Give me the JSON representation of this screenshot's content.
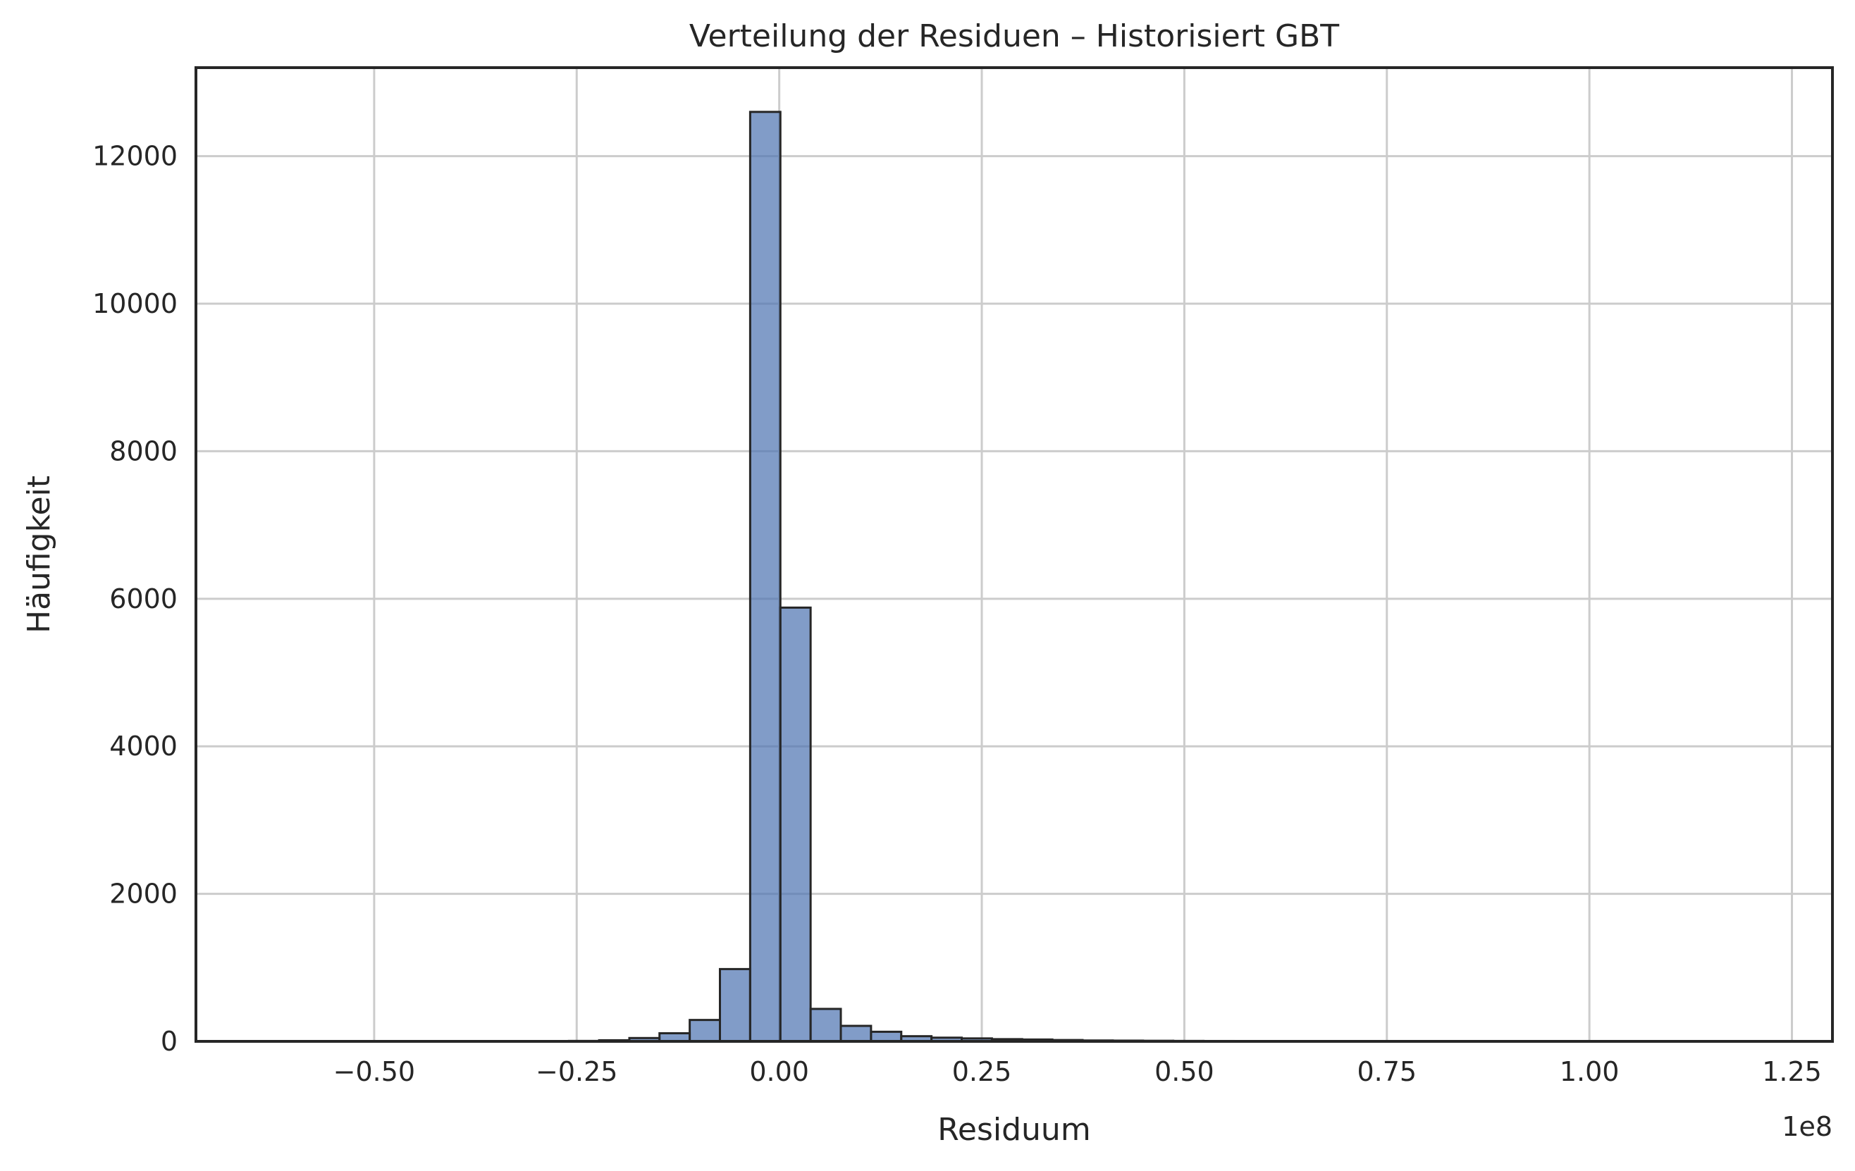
{
  "chart_data": {
    "type": "bar",
    "title": "Verteilung der Residuen – Historisiert GBT",
    "xlabel": "Residuum",
    "ylabel": "Häufigkeit",
    "x_offset_label": "1e8",
    "xlim": [
      -0.72,
      1.3
    ],
    "ylim": [
      0,
      13200
    ],
    "x_ticks": [
      -0.5,
      -0.25,
      0.0,
      0.25,
      0.5,
      0.75,
      1.0,
      1.25
    ],
    "x_tick_labels": [
      "−0.50",
      "−0.25",
      "0.00",
      "0.25",
      "0.50",
      "0.75",
      "1.00",
      "1.25"
    ],
    "y_ticks": [
      0,
      2000,
      4000,
      6000,
      8000,
      10000,
      12000
    ],
    "y_tick_labels": [
      "0",
      "2000",
      "4000",
      "6000",
      "8000",
      "10000",
      "12000"
    ],
    "grid": true,
    "color": "#4c72b0",
    "bins": [
      {
        "x0": -0.3342,
        "x1": -0.2969,
        "count": 3
      },
      {
        "x0": -0.2969,
        "x1": -0.2596,
        "count": 4
      },
      {
        "x0": -0.2596,
        "x1": -0.2223,
        "count": 6
      },
      {
        "x0": -0.2223,
        "x1": -0.185,
        "count": 15
      },
      {
        "x0": -0.185,
        "x1": -0.1478,
        "count": 45
      },
      {
        "x0": -0.1478,
        "x1": -0.1105,
        "count": 110
      },
      {
        "x0": -0.1105,
        "x1": -0.0732,
        "count": 290
      },
      {
        "x0": -0.0732,
        "x1": -0.0359,
        "count": 980
      },
      {
        "x0": -0.0359,
        "x1": 0.0014,
        "count": 12600
      },
      {
        "x0": 0.0014,
        "x1": 0.0387,
        "count": 5880
      },
      {
        "x0": 0.0387,
        "x1": 0.076,
        "count": 440
      },
      {
        "x0": 0.076,
        "x1": 0.1133,
        "count": 210
      },
      {
        "x0": 0.1133,
        "x1": 0.1506,
        "count": 130
      },
      {
        "x0": 0.1506,
        "x1": 0.1879,
        "count": 70
      },
      {
        "x0": 0.1879,
        "x1": 0.2252,
        "count": 50
      },
      {
        "x0": 0.2252,
        "x1": 0.2625,
        "count": 40
      },
      {
        "x0": 0.2625,
        "x1": 0.2998,
        "count": 30
      },
      {
        "x0": 0.2998,
        "x1": 0.3371,
        "count": 25
      },
      {
        "x0": 0.3371,
        "x1": 0.3744,
        "count": 18
      },
      {
        "x0": 0.3744,
        "x1": 0.4117,
        "count": 12
      },
      {
        "x0": 0.4117,
        "x1": 0.449,
        "count": 10
      },
      {
        "x0": 0.449,
        "x1": 0.4863,
        "count": 8
      },
      {
        "x0": 0.4863,
        "x1": 0.5236,
        "count": 6
      },
      {
        "x0": 0.5236,
        "x1": 0.5609,
        "count": 5
      },
      {
        "x0": 0.5609,
        "x1": 0.5982,
        "count": 4
      },
      {
        "x0": 0.5982,
        "x1": 0.6355,
        "count": 3
      },
      {
        "x0": 0.6355,
        "x1": 0.6728,
        "count": 3
      },
      {
        "x0": 0.6728,
        "x1": 0.7101,
        "count": 2
      }
    ]
  }
}
